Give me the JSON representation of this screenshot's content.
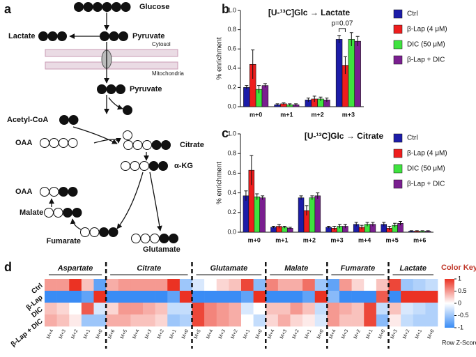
{
  "panel_labels": [
    "a",
    "b",
    "c",
    "d"
  ],
  "diagram": {
    "nodes": [
      "Glucose",
      "Lactate",
      "Pyruvate",
      "Pyruvate",
      "Acetyl-CoA",
      "OAA",
      "Citrate",
      "α-KG",
      "OAA",
      "Malate",
      "Fumarate",
      "Glutamate"
    ],
    "compartments": [
      "Cytosol",
      "Mitochondria"
    ]
  },
  "chart_data": [
    {
      "type": "bar",
      "title": "[U-¹³C]Glc → Lactate",
      "ylabel": "% enrichment",
      "categories": [
        "m+0",
        "m+1",
        "m+2",
        "m+3"
      ],
      "series": [
        {
          "name": "Ctrl",
          "color": "#1c1ca8",
          "values": [
            0.2,
            0.02,
            0.07,
            0.7
          ],
          "errors": [
            0.02,
            0.01,
            0.02,
            0.04
          ]
        },
        {
          "name": "β-Lap (4 μM)",
          "color": "#ee1d1d",
          "values": [
            0.44,
            0.03,
            0.08,
            0.43
          ],
          "errors": [
            0.15,
            0.01,
            0.03,
            0.09
          ]
        },
        {
          "name": "DIC (50 μM)",
          "color": "#3fe33f",
          "values": [
            0.18,
            0.02,
            0.08,
            0.7
          ],
          "errors": [
            0.04,
            0.01,
            0.02,
            0.07
          ]
        },
        {
          "name": "β-Lap + DIC",
          "color": "#7a1f90",
          "values": [
            0.22,
            0.02,
            0.07,
            0.68
          ],
          "errors": [
            0.02,
            0.01,
            0.02,
            0.05
          ]
        }
      ],
      "annotation": "p=0.07",
      "ylim": [
        0,
        1
      ],
      "yticks": [
        {
          "value": 0,
          "label": "0.0"
        },
        0.2,
        0.4,
        0.6,
        0.8,
        {
          "value": 1,
          "label": "1.0"
        }
      ]
    },
    {
      "type": "bar",
      "title": "[U-¹³C]Glc → Citrate",
      "ylabel": "% enrichment",
      "categories": [
        "m+0",
        "m+1",
        "m+2",
        "m+3",
        "m+4",
        "m+5",
        "m+6"
      ],
      "series": [
        {
          "name": "Ctrl",
          "color": "#1c1ca8",
          "values": [
            0.37,
            0.05,
            0.35,
            0.05,
            0.08,
            0.08,
            0.01
          ],
          "errors": [
            0.05,
            0.01,
            0.02,
            0.01,
            0.02,
            0.02,
            0.005
          ]
        },
        {
          "name": "β-Lap (4 μM)",
          "color": "#ee1d1d",
          "values": [
            0.63,
            0.06,
            0.22,
            0.04,
            0.05,
            0.04,
            0.01
          ],
          "errors": [
            0.15,
            0.02,
            0.05,
            0.02,
            0.02,
            0.02,
            0.005
          ]
        },
        {
          "name": "DIC (50 μM)",
          "color": "#3fe33f",
          "values": [
            0.36,
            0.05,
            0.35,
            0.06,
            0.08,
            0.07,
            0.01
          ],
          "errors": [
            0.03,
            0.01,
            0.02,
            0.02,
            0.02,
            0.02,
            0.005
          ]
        },
        {
          "name": "β-Lap + DIC",
          "color": "#7a1f90",
          "values": [
            0.35,
            0.04,
            0.37,
            0.06,
            0.08,
            0.09,
            0.01
          ],
          "errors": [
            0.02,
            0.01,
            0.03,
            0.02,
            0.02,
            0.02,
            0.005
          ]
        }
      ],
      "ylim": [
        0,
        1
      ],
      "yticks": [
        {
          "value": 0,
          "label": "0.0"
        },
        0.2,
        0.4,
        0.6,
        0.8,
        {
          "value": 1,
          "label": "1.0"
        }
      ]
    },
    {
      "type": "heatmap",
      "rows": [
        "Ctrl",
        "β-Lap",
        "DIC",
        "β-Lap + DIC"
      ],
      "groups": [
        {
          "name": "Aspartate",
          "columns": [
            "M+4",
            "M+3",
            "M+2",
            "M+1",
            "M+0"
          ],
          "values": [
            [
              0.5,
              0.5,
              1,
              0.3,
              -0.8
            ],
            [
              -1,
              -1,
              -1,
              -0.8,
              1
            ],
            [
              0.3,
              0.2,
              0,
              0.8,
              -0.2
            ],
            [
              0.4,
              0.3,
              0.1,
              -0.5,
              -0.5
            ]
          ]
        },
        {
          "name": "Citrate",
          "columns": [
            "M+6",
            "M+5",
            "M+4",
            "M+3",
            "M+2",
            "M+1",
            "M+0"
          ],
          "values": [
            [
              0.4,
              0.5,
              0.5,
              0.5,
              0.5,
              1,
              -0.5
            ],
            [
              -1,
              -1,
              -1,
              -1,
              -1,
              -0.8,
              1
            ],
            [
              0.2,
              0.5,
              0.5,
              0.4,
              0.3,
              -0.3,
              -0.3
            ],
            [
              0.4,
              0.4,
              0.3,
              0.3,
              0.2,
              -0.5,
              -0.4
            ]
          ]
        },
        {
          "name": "Glutamate",
          "columns": [
            "M+5",
            "M+4",
            "M+3",
            "M+2",
            "M+1",
            "M+0"
          ],
          "values": [
            [
              -0.2,
              0,
              0.2,
              0.3,
              0.9,
              -0.6
            ],
            [
              -1,
              -1,
              -1,
              -1,
              -0.8,
              1
            ],
            [
              0.9,
              0.6,
              0.5,
              0.4,
              -0.2,
              0
            ],
            [
              0.9,
              0.6,
              0.5,
              0.4,
              0,
              -0.3
            ]
          ]
        },
        {
          "name": "Malate",
          "columns": [
            "M+4",
            "M+3",
            "M+2",
            "M+1",
            "M+0"
          ],
          "values": [
            [
              0.6,
              0.4,
              0.4,
              0.7,
              -0.5
            ],
            [
              -1,
              -1,
              -1,
              -0.8,
              1
            ],
            [
              0.3,
              0.3,
              0.5,
              0.3,
              -0.3
            ],
            [
              0.2,
              0.4,
              0.2,
              0.1,
              -0.2
            ]
          ]
        },
        {
          "name": "Fumarate",
          "columns": [
            "M+4",
            "M+3",
            "M+2",
            "M+1",
            "M+0"
          ],
          "values": [
            [
              -0.8,
              0.5,
              0.2,
              0,
              0.3
            ],
            [
              -0.6,
              -1,
              -1,
              -1,
              0.8
            ],
            [
              0.5,
              0.4,
              0.3,
              0.9,
              -0.3
            ],
            [
              0.5,
              0.3,
              0.3,
              0.9,
              -0.6
            ]
          ]
        },
        {
          "name": "Lactate",
          "columns": [
            "M+3",
            "M+2",
            "M+1",
            "M+0"
          ],
          "values": [
            [
              0.9,
              -0.5,
              -0.4,
              -0.3
            ],
            [
              -1,
              1,
              1,
              1
            ],
            [
              0.3,
              -0.2,
              -0.3,
              -0.4
            ],
            [
              0.1,
              -0.3,
              -0.4,
              -0.4
            ]
          ]
        }
      ],
      "colorbar": {
        "title": "Color Key",
        "label": "Row Z-Score",
        "zlim": [
          -1,
          1
        ],
        "ticks": [
          1,
          0.5,
          0,
          -0.5,
          -1
        ],
        "colors": [
          "#3a8cf5",
          "#ffffff",
          "#eb3223"
        ]
      }
    }
  ]
}
